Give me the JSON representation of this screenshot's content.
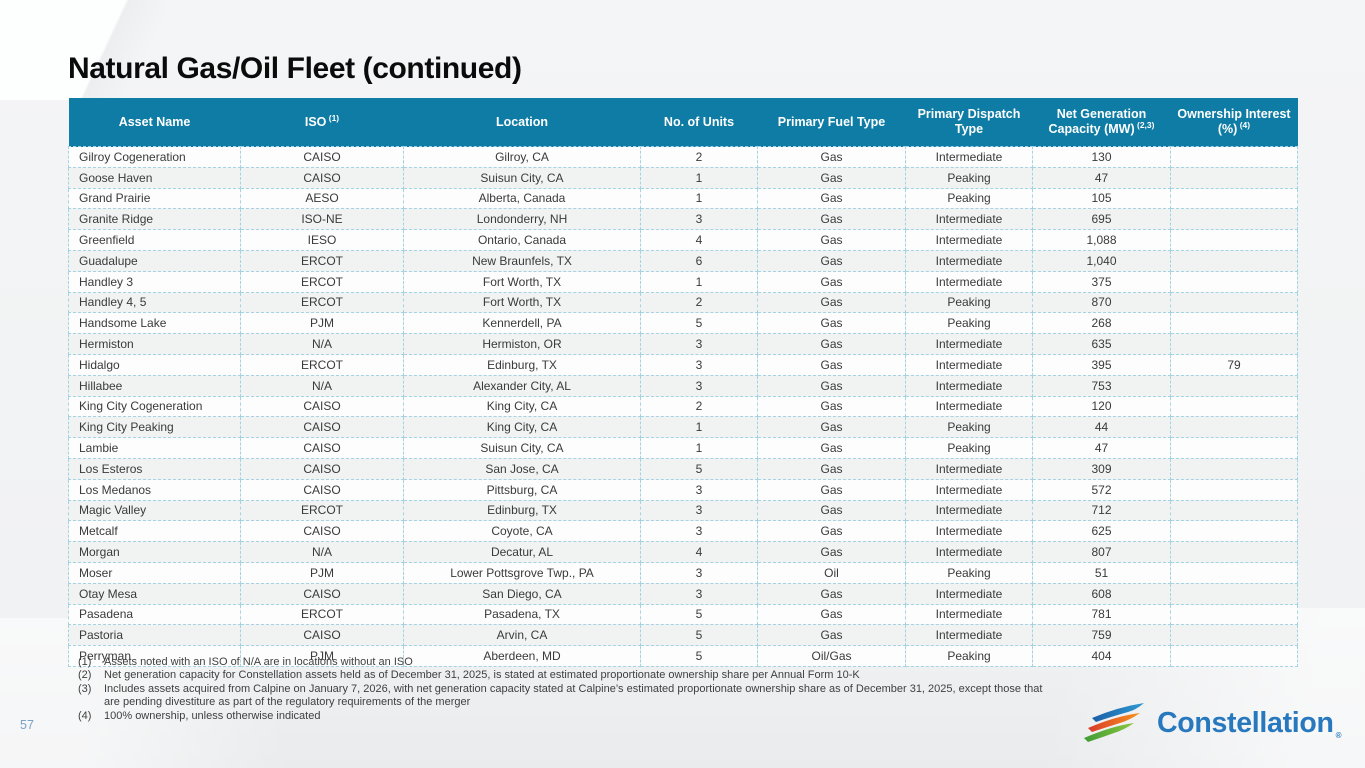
{
  "slide": {
    "title": "Natural Gas/Oil Fleet (continued)",
    "page_number": "57",
    "logo_text": "Constellation",
    "logo_registered": "®"
  },
  "colors": {
    "header_bg": "#0e7ca4",
    "table_border": "#a6d3e2",
    "alt_row_bg": "#f1f2f2",
    "logo_blue": "#2778be",
    "logo_stripe_blue_dark": "#1b5fa8",
    "logo_stripe_blue_light": "#2f9ad2",
    "logo_stripe_red": "#d93a2b",
    "logo_stripe_orange": "#f7941d",
    "logo_stripe_green_dark": "#3f9c35",
    "logo_stripe_green_light": "#8cc63f"
  },
  "table": {
    "columns": [
      {
        "label": "Asset Name",
        "sup": ""
      },
      {
        "label": "ISO",
        "sup": "(1)"
      },
      {
        "label": "Location",
        "sup": ""
      },
      {
        "label": "No. of Units",
        "sup": ""
      },
      {
        "label": "Primary Fuel Type",
        "sup": ""
      },
      {
        "label": "Primary Dispatch Type",
        "sup": ""
      },
      {
        "label": "Net Generation Capacity (MW)",
        "sup": "(2,3)"
      },
      {
        "label": "Ownership Interest (%)",
        "sup": "(4)"
      }
    ],
    "rows": [
      [
        "Gilroy Cogeneration",
        "CAISO",
        "Gilroy, CA",
        "2",
        "Gas",
        "Intermediate",
        "130",
        ""
      ],
      [
        "Goose Haven",
        "CAISO",
        "Suisun City, CA",
        "1",
        "Gas",
        "Peaking",
        "47",
        ""
      ],
      [
        "Grand Prairie",
        "AESO",
        "Alberta, Canada",
        "1",
        "Gas",
        "Peaking",
        "105",
        ""
      ],
      [
        "Granite Ridge",
        "ISO-NE",
        "Londonderry, NH",
        "3",
        "Gas",
        "Intermediate",
        "695",
        ""
      ],
      [
        "Greenfield",
        "IESO",
        "Ontario, Canada",
        "4",
        "Gas",
        "Intermediate",
        "1,088",
        ""
      ],
      [
        "Guadalupe",
        "ERCOT",
        "New Braunfels, TX",
        "6",
        "Gas",
        "Intermediate",
        "1,040",
        ""
      ],
      [
        "Handley 3",
        "ERCOT",
        "Fort Worth, TX",
        "1",
        "Gas",
        "Intermediate",
        "375",
        ""
      ],
      [
        "Handley 4, 5",
        "ERCOT",
        "Fort Worth, TX",
        "2",
        "Gas",
        "Peaking",
        "870",
        ""
      ],
      [
        "Handsome Lake",
        "PJM",
        "Kennerdell, PA",
        "5",
        "Gas",
        "Peaking",
        "268",
        ""
      ],
      [
        "Hermiston",
        "N/A",
        "Hermiston, OR",
        "3",
        "Gas",
        "Intermediate",
        "635",
        ""
      ],
      [
        "Hidalgo",
        "ERCOT",
        "Edinburg, TX",
        "3",
        "Gas",
        "Intermediate",
        "395",
        "79"
      ],
      [
        "Hillabee",
        "N/A",
        "Alexander City, AL",
        "3",
        "Gas",
        "Intermediate",
        "753",
        ""
      ],
      [
        "King City Cogeneration",
        "CAISO",
        "King City, CA",
        "2",
        "Gas",
        "Intermediate",
        "120",
        ""
      ],
      [
        "King City Peaking",
        "CAISO",
        "King City, CA",
        "1",
        "Gas",
        "Peaking",
        "44",
        ""
      ],
      [
        "Lambie",
        "CAISO",
        "Suisun City, CA",
        "1",
        "Gas",
        "Peaking",
        "47",
        ""
      ],
      [
        "Los Esteros",
        "CAISO",
        "San Jose, CA",
        "5",
        "Gas",
        "Intermediate",
        "309",
        ""
      ],
      [
        "Los Medanos",
        "CAISO",
        "Pittsburg, CA",
        "3",
        "Gas",
        "Intermediate",
        "572",
        ""
      ],
      [
        "Magic Valley",
        "ERCOT",
        "Edinburg, TX",
        "3",
        "Gas",
        "Intermediate",
        "712",
        ""
      ],
      [
        "Metcalf",
        "CAISO",
        "Coyote, CA",
        "3",
        "Gas",
        "Intermediate",
        "625",
        ""
      ],
      [
        "Morgan",
        "N/A",
        "Decatur, AL",
        "4",
        "Gas",
        "Intermediate",
        "807",
        ""
      ],
      [
        "Moser",
        "PJM",
        "Lower Pottsgrove Twp., PA",
        "3",
        "Oil",
        "Peaking",
        "51",
        ""
      ],
      [
        "Otay Mesa",
        "CAISO",
        "San Diego, CA",
        "3",
        "Gas",
        "Intermediate",
        "608",
        ""
      ],
      [
        "Pasadena",
        "ERCOT",
        "Pasadena, TX",
        "5",
        "Gas",
        "Intermediate",
        "781",
        ""
      ],
      [
        "Pastoria",
        "CAISO",
        "Arvin, CA",
        "5",
        "Gas",
        "Intermediate",
        "759",
        ""
      ],
      [
        "Perryman",
        "PJM",
        "Aberdeen, MD",
        "5",
        "Oil/Gas",
        "Peaking",
        "404",
        ""
      ]
    ]
  },
  "footnotes": [
    {
      "num": "(1)",
      "text": "Assets noted with an ISO of N/A are in locations without an ISO"
    },
    {
      "num": "(2)",
      "text": "Net generation capacity for Constellation assets held as of December 31, 2025, is stated at estimated proportionate ownership share per Annual Form 10-K"
    },
    {
      "num": "(3)",
      "text": "Includes assets acquired from Calpine on January 7, 2026, with net generation capacity stated at Calpine’s estimated proportionate ownership share as of December 31, 2025, except those that are pending divestiture as part of the regulatory requirements of the merger"
    },
    {
      "num": "(4)",
      "text": "100% ownership, unless otherwise indicated"
    }
  ]
}
